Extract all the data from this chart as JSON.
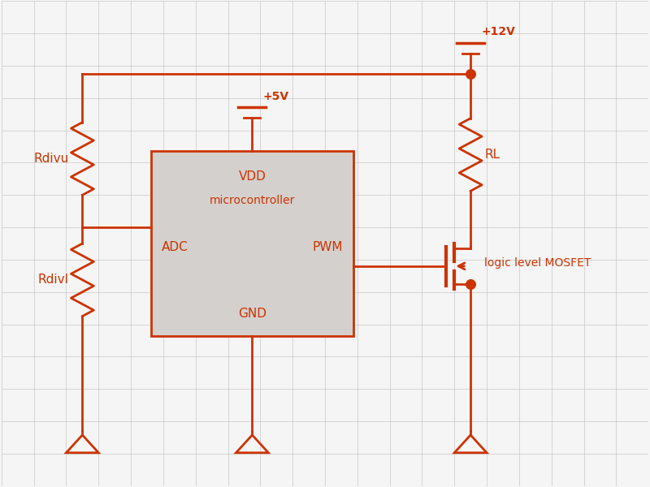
{
  "bg_color": "#f5f5f5",
  "grid_color": "#c8c8c8",
  "wire_color": "#cc3300",
  "wire_lw": 2.0,
  "dot_size": 70,
  "text_color": "#cc3300",
  "box_color": "#d4d0cd",
  "box_edge_color": "#cc3300",
  "xlim": [
    0,
    8
  ],
  "ylim": [
    0,
    6
  ]
}
